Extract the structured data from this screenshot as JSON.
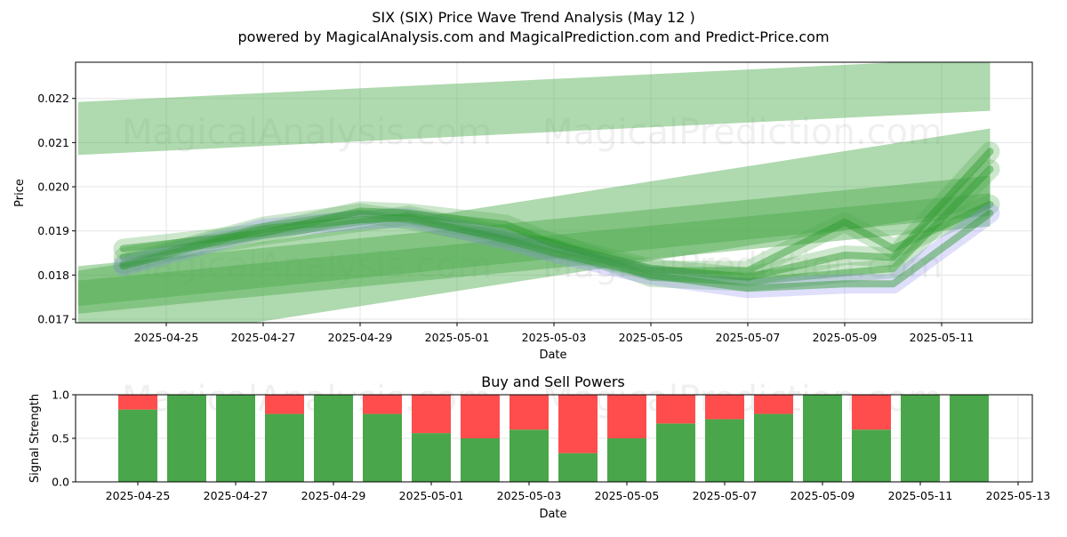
{
  "title": "SIX (SIX) Price Wave Trend Analysis (May 12 )",
  "subtitle": "powered by MagicalAnalysis.com and MagicalPrediction.com and Predict-Price.com",
  "watermarks": [
    "MagicalAnalysis.com",
    "MagicalPrediction.com"
  ],
  "colors": {
    "green_band": "#4daa4d",
    "green_line": "#2a9a2a",
    "blue_band": "#8c8cf0",
    "buy": "#4aa64a",
    "sell": "#ff4d4d",
    "grid": "#e5e5e5"
  },
  "chart_data": [
    {
      "type": "line",
      "title": "",
      "xlabel": "Date",
      "ylabel": "Price",
      "ylim": [
        0.01692,
        0.02282
      ],
      "x_ticks": [
        "2025-04-25",
        "2025-04-27",
        "2025-04-29",
        "2025-05-01",
        "2025-05-03",
        "2025-05-05",
        "2025-05-07",
        "2025-05-09",
        "2025-05-11"
      ],
      "y_ticks": [
        0.017,
        0.018,
        0.019,
        0.02,
        0.021,
        0.022
      ],
      "y_tick_labels": [
        "0.017",
        "0.018",
        "0.019",
        "0.020",
        "0.021",
        "0.022"
      ],
      "grid": true,
      "bands": [
        {
          "x": [
            "2025-04-23",
            "2025-05-12"
          ],
          "center": [
            0.02132,
            0.02232
          ],
          "width": 0.0012
        },
        {
          "x": [
            "2025-04-23",
            "2025-05-12"
          ],
          "center": [
            0.01775,
            0.0198
          ],
          "width": 0.0009
        },
        {
          "x": [
            "2025-04-23",
            "2025-05-12"
          ],
          "center": [
            0.0175,
            0.01948
          ],
          "width": 0.00075
        },
        {
          "x": [
            "2025-04-23",
            "2025-05-12"
          ],
          "center": [
            0.0172,
            0.02042
          ],
          "width": 0.0018
        }
      ],
      "series": [
        {
          "x": [
            "2025-04-24",
            "2025-04-27",
            "2025-04-29",
            "2025-04-30",
            "2025-05-02",
            "2025-05-03",
            "2025-05-05",
            "2025-05-07",
            "2025-05-09",
            "2025-05-10",
            "2025-05-12"
          ],
          "values": [
            0.01825,
            0.0191,
            0.0194,
            0.01925,
            0.01885,
            0.0186,
            0.0181,
            0.0181,
            0.0192,
            0.0186,
            0.0196
          ]
        },
        {
          "x": [
            "2025-04-24",
            "2025-04-27",
            "2025-04-29",
            "2025-04-30",
            "2025-05-02",
            "2025-05-03",
            "2025-05-05",
            "2025-05-07",
            "2025-05-09",
            "2025-05-10",
            "2025-05-12"
          ],
          "values": [
            0.0184,
            0.0189,
            0.0192,
            0.01935,
            0.0189,
            0.01875,
            0.01795,
            0.01785,
            0.01805,
            0.01815,
            0.0204
          ]
        },
        {
          "x": [
            "2025-04-24",
            "2025-04-27",
            "2025-04-29",
            "2025-04-30",
            "2025-05-02",
            "2025-05-03",
            "2025-05-05",
            "2025-05-07",
            "2025-05-09",
            "2025-05-10",
            "2025-05-12"
          ],
          "values": [
            0.0182,
            0.01905,
            0.01925,
            0.0193,
            0.0188,
            0.0185,
            0.018,
            0.0177,
            0.0178,
            0.0178,
            0.0194
          ]
        },
        {
          "x": [
            "2025-04-24",
            "2025-04-27",
            "2025-04-29",
            "2025-04-30",
            "2025-05-02",
            "2025-05-03",
            "2025-05-05",
            "2025-05-07",
            "2025-05-09",
            "2025-05-10",
            "2025-05-12"
          ],
          "values": [
            0.0186,
            0.01895,
            0.01945,
            0.0194,
            0.01915,
            0.0187,
            0.01815,
            0.01795,
            0.01845,
            0.0184,
            0.0208
          ]
        }
      ]
    },
    {
      "type": "bar",
      "title": "Buy and Sell Powers",
      "xlabel": "Date",
      "ylabel": "Signal Strength",
      "ylim": [
        0,
        1
      ],
      "x_ticks": [
        "2025-04-25",
        "2025-04-27",
        "2025-04-29",
        "2025-05-01",
        "2025-05-03",
        "2025-05-05",
        "2025-05-07",
        "2025-05-09",
        "2025-05-11",
        "2025-05-13"
      ],
      "y_ticks": [
        0.0,
        0.5,
        1.0
      ],
      "y_tick_labels": [
        "0.0",
        "0.5",
        "1.0"
      ],
      "grid": true,
      "categories": [
        "2025-04-25",
        "2025-04-26",
        "2025-04-27",
        "2025-04-28",
        "2025-04-29",
        "2025-04-30",
        "2025-05-01",
        "2025-05-02",
        "2025-05-03",
        "2025-05-04",
        "2025-05-05",
        "2025-05-06",
        "2025-05-07",
        "2025-05-08",
        "2025-05-09",
        "2025-05-10",
        "2025-05-11",
        "2025-05-12"
      ],
      "series": [
        {
          "values": [
            0.83,
            1.0,
            1.0,
            0.78,
            1.0,
            0.78,
            0.56,
            0.5,
            0.6,
            0.33,
            0.5,
            0.67,
            0.72,
            0.78,
            1.0,
            0.6,
            1.0,
            1.0
          ]
        },
        {
          "values": [
            0.17,
            0.0,
            0.0,
            0.22,
            0.0,
            0.22,
            0.44,
            0.5,
            0.4,
            0.67,
            0.5,
            0.33,
            0.28,
            0.22,
            0.0,
            0.4,
            0.0,
            0.0
          ]
        }
      ]
    }
  ]
}
